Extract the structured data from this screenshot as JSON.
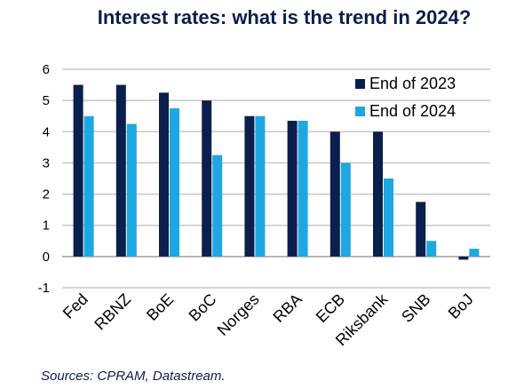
{
  "chart_data": {
    "type": "bar",
    "title": "Interest rates: what is the trend in 2024?",
    "source": "Sources: CPRAM, Datastream.",
    "categories": [
      "Fed",
      "RBNZ",
      "BoE",
      "BoC",
      "Norges",
      "RBA",
      "ECB",
      "Riksbank",
      "SNB",
      "BoJ"
    ],
    "series": [
      {
        "name": "End of 2023",
        "color": "#0b1f4d",
        "values": [
          5.5,
          5.5,
          5.25,
          5.0,
          4.5,
          4.35,
          4.0,
          4.0,
          1.75,
          -0.1
        ]
      },
      {
        "name": "End of 2024",
        "color": "#1ea7e1",
        "values": [
          4.5,
          4.25,
          4.75,
          3.25,
          4.5,
          4.35,
          3.0,
          2.5,
          0.5,
          0.25
        ]
      }
    ],
    "ylim": [
      -1,
      6
    ],
    "yticks": [
      -1,
      0,
      1,
      2,
      3,
      4,
      5,
      6
    ],
    "grid": true,
    "legend_position": "top-right"
  }
}
